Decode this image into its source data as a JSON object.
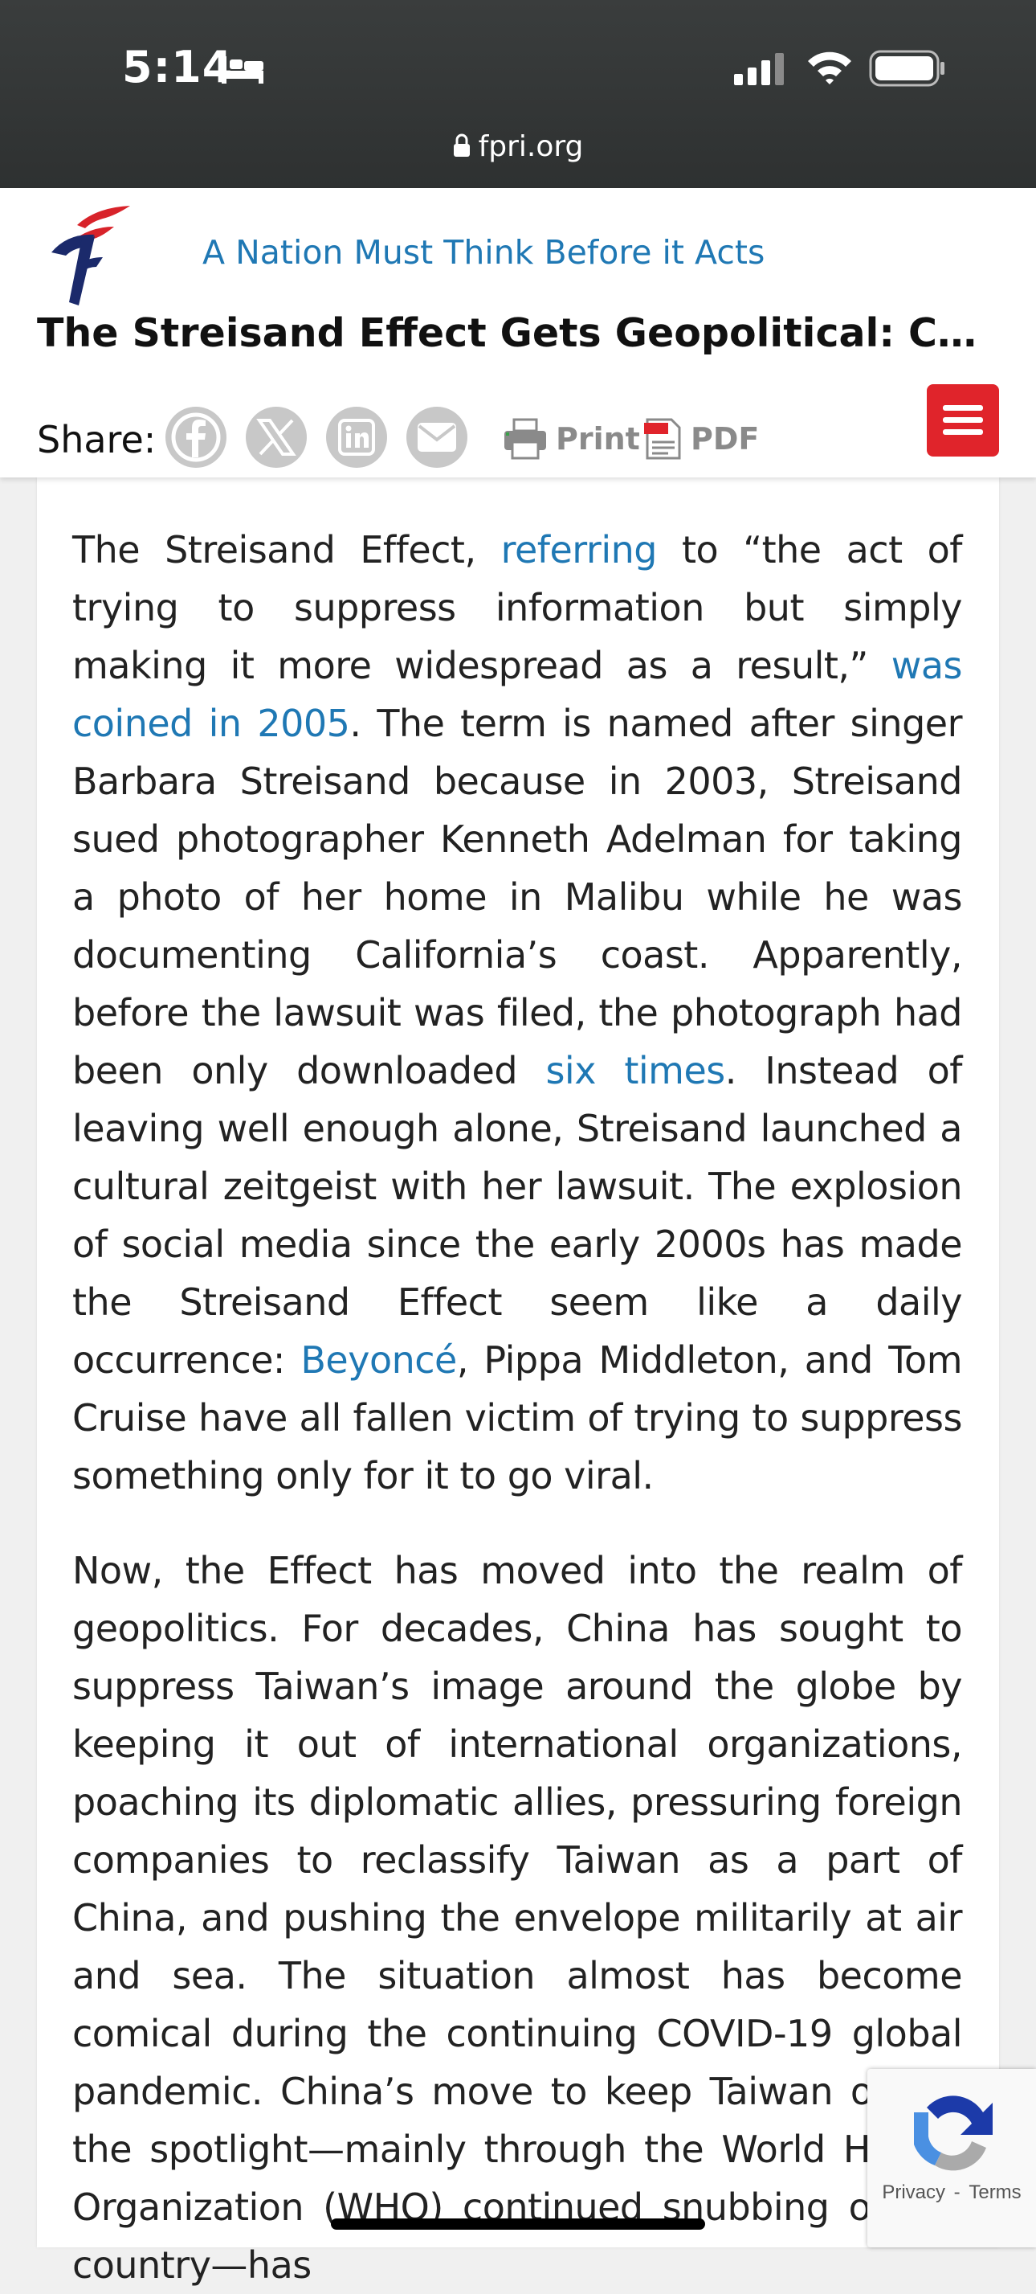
{
  "status_bar": {
    "time": "5:14",
    "url": "fpri.org",
    "icons": [
      "bed-icon",
      "signal-icon",
      "wifi-icon",
      "battery-icon",
      "lock-icon"
    ]
  },
  "header": {
    "tagline": "A Nation Must Think Before it Acts",
    "title": "The Streisand Effect Gets Geopolitical: China’s (...",
    "share_label": "Share:",
    "share_icons": [
      "facebook-icon",
      "x-icon",
      "linkedin-icon",
      "email-icon"
    ],
    "print_label": "Print",
    "pdf_label": "PDF",
    "brand_color": "#1f78b4",
    "menu_color": "#e0242b"
  },
  "article": {
    "p1": {
      "t1": "The Streisand Effect, ",
      "link1": "referring",
      "t2": " to “the act of trying to suppress information but simply making it more widespread as a result,” ",
      "link2": "was coined in 2005",
      "t3": ". The term is named after singer Barbara Streisand because in 2003, Streisand sued photographer Kenneth Adelman for taking a photo of her home in Malibu while he was documenting California’s coast. Apparently, before the lawsuit was filed, the photograph had been only downloaded ",
      "link3": "six times",
      "t4": ". Instead of leaving well enough alone, Streisand launched a cultural zeitgeist with her lawsuit. The explosion of social media since the early 2000s has made the Streisand Effect seem like a daily occurrence: ",
      "link4": "Beyoncé",
      "t5": ", Pippa Middleton, and Tom Cruise have all fallen victim of trying to suppress something only for it to go viral."
    },
    "p2": "Now, the Effect has moved into the realm of geopolitics. For decades, China has sought to suppress Taiwan’s image around the globe by keeping it out of international organizations, poaching its diplomatic allies, pressuring foreign companies to reclassify Taiwan as a part of China, and pushing the envelope militarily at air and sea. The situation almost has become comical during the continuing COVID-19 global pandemic. China’s move to keep Taiwan out of the spotlight—mainly through the World Health Organization (WHO) continued snubbing of the country—has"
  },
  "recaptcha": {
    "privacy": "Privacy",
    "separator": "-",
    "terms": "Terms"
  }
}
